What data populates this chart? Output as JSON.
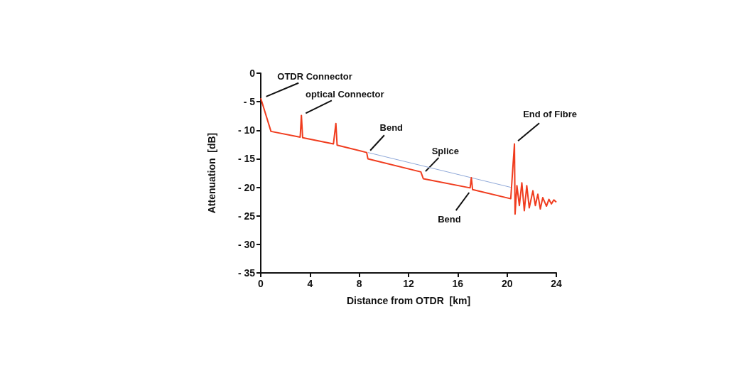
{
  "chart_data": {
    "type": "line",
    "xlabel": "Distance from OTDR  [km]",
    "ylabel": "Attenuation  [dB]",
    "xlim": [
      0,
      24
    ],
    "xticks": [
      0,
      4,
      8,
      12,
      16,
      20,
      24
    ],
    "ylim": [
      -35,
      0
    ],
    "yticks": [
      {
        "value": 0,
        "label": "0"
      },
      {
        "value": -5,
        "label": "- 5"
      },
      {
        "value": -10,
        "label": "- 10"
      },
      {
        "value": -15,
        "label": "- 15"
      },
      {
        "value": -20,
        "label": "- 20"
      },
      {
        "value": -25,
        "label": "- 25"
      },
      {
        "value": -30,
        "label": "- 30"
      },
      {
        "value": -35,
        "label": "- 35"
      }
    ],
    "grid": false,
    "marker": "none",
    "line_style": "solid",
    "series": [
      {
        "color": "#f03c1e",
        "x": [
          0,
          0.83,
          3.2,
          3.3,
          3.4,
          5.9,
          6.1,
          6.2,
          8.6,
          8.7,
          13.0,
          13.2,
          17.0,
          17.1,
          17.2,
          20.3,
          20.6,
          20.65,
          20.8,
          21.0,
          21.2,
          21.4,
          21.6,
          21.8,
          22.1,
          22.3,
          22.5,
          22.7,
          22.9,
          23.2,
          23.4,
          23.6,
          23.8,
          24.0
        ],
        "values": [
          -4.4,
          -10.2,
          -11.2,
          -7.4,
          -11.3,
          -12.4,
          -8.8,
          -12.6,
          -13.9,
          -15.0,
          -17.3,
          -18.5,
          -20.1,
          -18.3,
          -20.4,
          -22.0,
          -12.4,
          -24.7,
          -19.7,
          -23.2,
          -19.2,
          -24.1,
          -19.7,
          -23.6,
          -20.6,
          -23.2,
          -21.2,
          -23.8,
          -21.8,
          -23.3,
          -22.1,
          -22.9,
          -22.2,
          -22.6
        ]
      },
      {
        "color": "#8fa8d8",
        "x": [
          8.7,
          20.3
        ],
        "values": [
          -13.9,
          -20.0
        ]
      }
    ],
    "annotations": [
      {
        "text": "OTDR Connector",
        "x": 0,
        "y": -4.5
      },
      {
        "text": "optical Connector",
        "x": 3.3,
        "y": -7.4
      },
      {
        "text": "Bend",
        "x": 8.7,
        "y": -14.0
      },
      {
        "text": "Splice",
        "x": 13.2,
        "y": -17.6
      },
      {
        "text": "Bend",
        "x": 17.1,
        "y": -20.4
      },
      {
        "text": "End of Fibre",
        "x": 20.6,
        "y": -12.4
      }
    ]
  }
}
